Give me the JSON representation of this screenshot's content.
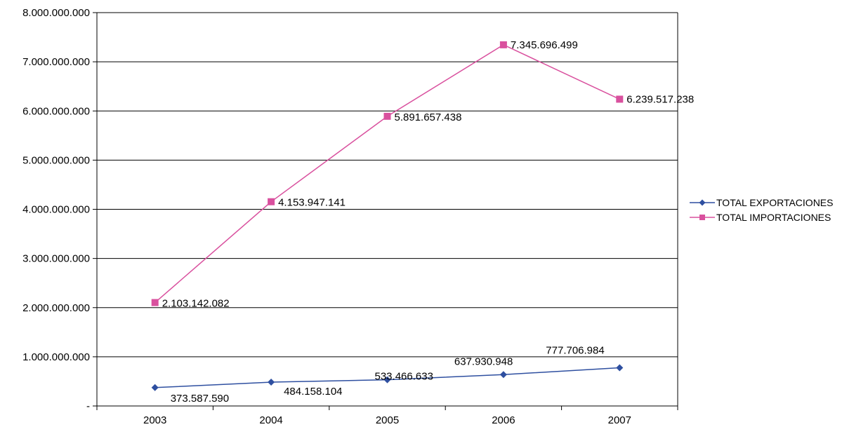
{
  "chart_data": {
    "type": "line",
    "title": "",
    "xlabel": "",
    "ylabel": "",
    "categories": [
      "2003",
      "2004",
      "2005",
      "2006",
      "2007"
    ],
    "ylim": [
      0,
      8000000000
    ],
    "yticks": [
      0,
      1000000000,
      2000000000,
      3000000000,
      4000000000,
      5000000000,
      6000000000,
      7000000000,
      8000000000
    ],
    "ytick_labels": [
      "-",
      "1.000.000.000",
      "2.000.000.000",
      "3.000.000.000",
      "4.000.000.000",
      "5.000.000.000",
      "6.000.000.000",
      "7.000.000.000",
      "8.000.000.000"
    ],
    "grid": true,
    "legend_position": "right",
    "series": [
      {
        "name": "TOTAL EXPORTACIONES",
        "color": "#2e4fa0",
        "marker": "diamond",
        "values": [
          373587590,
          484158104,
          533466633,
          637930948,
          777706984
        ],
        "labels": [
          "373.587.590",
          "484.158.104",
          "533.466.633",
          "637.930.948",
          "777.706.984"
        ]
      },
      {
        "name": "TOTAL IMPORTACIONES",
        "color": "#d9509e",
        "marker": "square",
        "values": [
          2103142082,
          4153947141,
          5891657438,
          7345696499,
          6239517238
        ],
        "labels": [
          "2.103.142.082",
          "4.153.947.141",
          "5.891.657.438",
          "7.345.696.499",
          "6.239.517.238"
        ]
      }
    ]
  }
}
